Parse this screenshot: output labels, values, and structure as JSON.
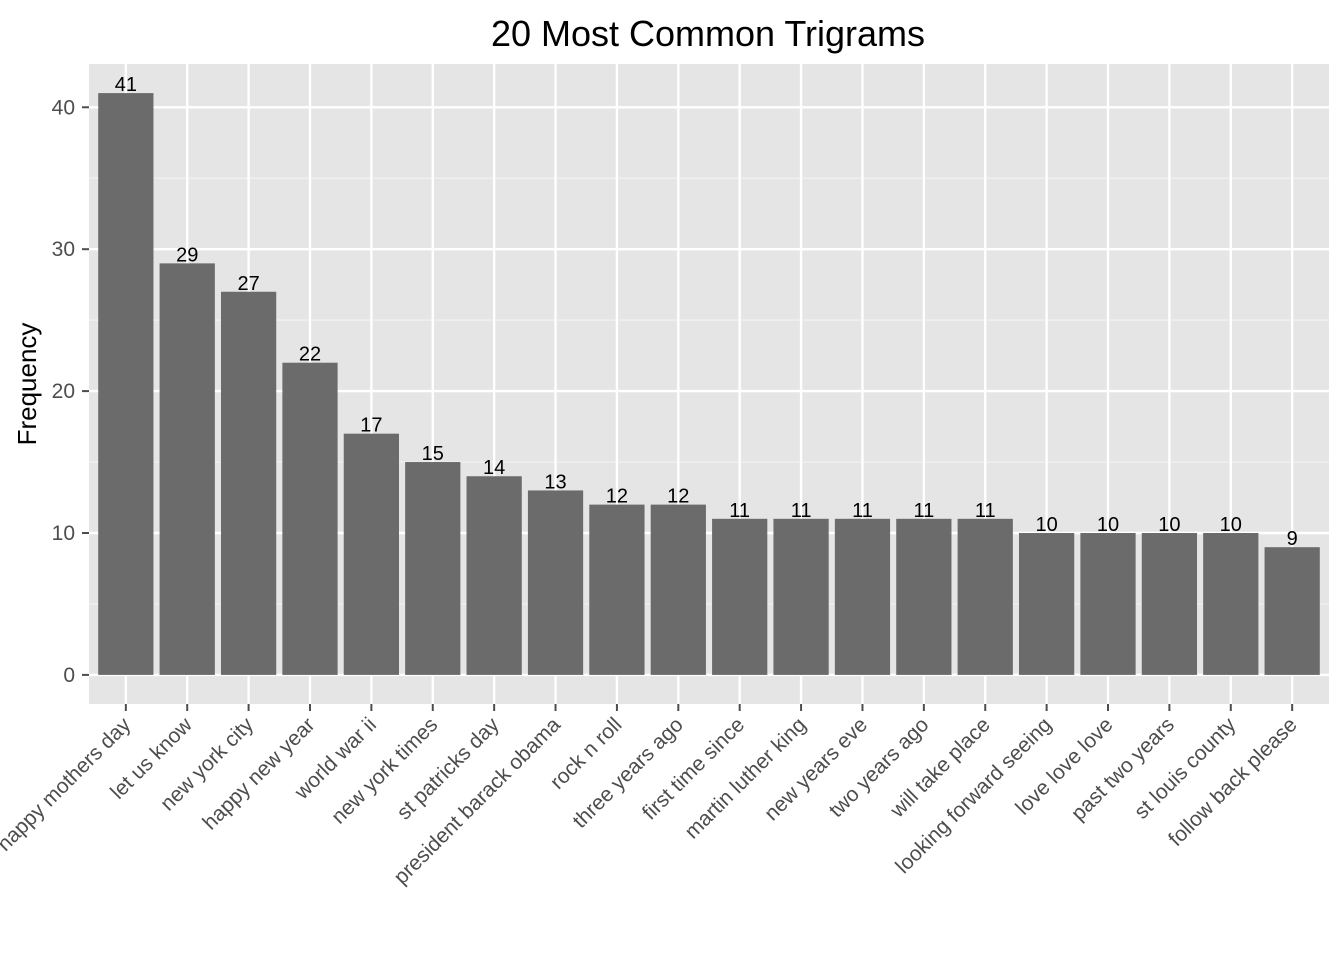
{
  "chart_data": {
    "type": "bar",
    "title": "20 Most Common Trigrams",
    "xlabel": "",
    "ylabel": "Frequency",
    "categories": [
      "happy mothers day",
      "let us know",
      "new york city",
      "happy new year",
      "world war ii",
      "new york times",
      "st patricks day",
      "president barack obama",
      "rock n roll",
      "three years ago",
      "first time since",
      "martin luther king",
      "new years eve",
      "two years ago",
      "will take place",
      "looking forward seeing",
      "love love love",
      "past two years",
      "st louis county",
      "follow back please"
    ],
    "values": [
      41,
      29,
      27,
      22,
      17,
      15,
      14,
      13,
      12,
      12,
      11,
      11,
      11,
      11,
      11,
      10,
      10,
      10,
      10,
      9
    ],
    "yticks": [
      0,
      10,
      20,
      30,
      40
    ],
    "ylim": [
      -2.05,
      43.05
    ],
    "grid": true,
    "legend": "none",
    "colors": {
      "bar": "#6b6b6b",
      "panel": "#e5e5e5",
      "grid_major": "#ffffff",
      "grid_minor": "#f2f2f2",
      "tick_text": "#4d4d4d",
      "label_text": "#000000"
    }
  }
}
